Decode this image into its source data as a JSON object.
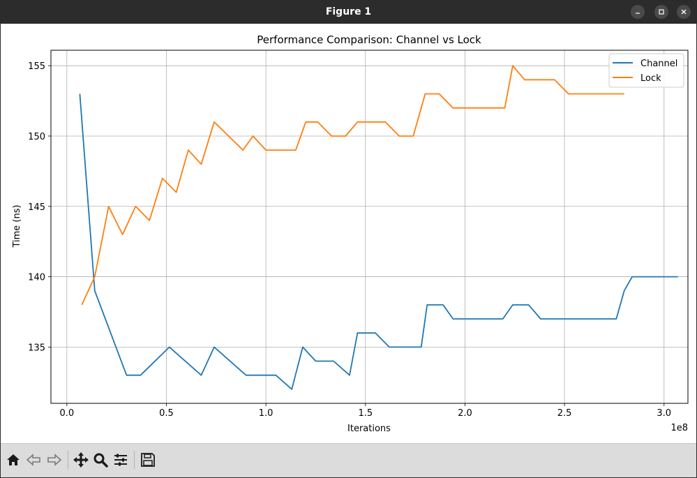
{
  "window": {
    "title": "Figure 1"
  },
  "toolbar": {
    "buttons": [
      {
        "name": "home-icon"
      },
      {
        "name": "back-icon"
      },
      {
        "name": "forward-icon"
      },
      {
        "name": "pan-icon"
      },
      {
        "name": "zoom-icon"
      },
      {
        "name": "configure-subplots-icon"
      },
      {
        "name": "save-icon"
      }
    ]
  },
  "chart_data": {
    "type": "line",
    "title": "Performance Comparison: Channel vs Lock",
    "xlabel": "Iterations",
    "ylabel": "Time (ns)",
    "x_offset_label": "1e8",
    "xlim": [
      -0.08,
      3.12
    ],
    "ylim": [
      131.0,
      156.1
    ],
    "x_ticks": [
      0.0,
      0.5,
      1.0,
      1.5,
      2.0,
      2.5,
      3.0
    ],
    "x_tick_labels": [
      "0.0",
      "0.5",
      "1.0",
      "1.5",
      "2.0",
      "2.5",
      "3.0"
    ],
    "y_ticks": [
      135,
      140,
      145,
      150,
      155
    ],
    "y_tick_labels": [
      "135",
      "140",
      "145",
      "150",
      "155"
    ],
    "grid": true,
    "legend_position": "top-right",
    "series": [
      {
        "name": "Channel",
        "color": "#1f77b4",
        "points": [
          [
            0.065,
            153
          ],
          [
            0.14,
            139
          ],
          [
            0.3,
            133
          ],
          [
            0.37,
            133
          ],
          [
            0.515,
            135
          ],
          [
            0.675,
            133
          ],
          [
            0.74,
            135
          ],
          [
            0.9,
            133
          ],
          [
            1.05,
            133
          ],
          [
            1.13,
            132
          ],
          [
            1.185,
            135
          ],
          [
            1.25,
            134
          ],
          [
            1.34,
            134
          ],
          [
            1.42,
            133
          ],
          [
            1.46,
            136
          ],
          [
            1.55,
            136
          ],
          [
            1.62,
            135
          ],
          [
            1.78,
            135
          ],
          [
            1.81,
            138
          ],
          [
            1.89,
            138
          ],
          [
            1.94,
            137
          ],
          [
            2.19,
            137
          ],
          [
            2.24,
            138
          ],
          [
            2.32,
            138
          ],
          [
            2.38,
            137
          ],
          [
            2.76,
            137
          ],
          [
            2.8,
            139
          ],
          [
            2.84,
            140
          ],
          [
            3.07,
            140
          ]
        ]
      },
      {
        "name": "Lock",
        "color": "#ff7f0e",
        "points": [
          [
            0.075,
            138
          ],
          [
            0.14,
            140
          ],
          [
            0.21,
            145
          ],
          [
            0.28,
            143
          ],
          [
            0.345,
            145
          ],
          [
            0.415,
            144
          ],
          [
            0.48,
            147
          ],
          [
            0.55,
            146
          ],
          [
            0.61,
            149
          ],
          [
            0.675,
            148
          ],
          [
            0.74,
            151
          ],
          [
            0.885,
            149
          ],
          [
            0.935,
            150
          ],
          [
            1.0,
            149
          ],
          [
            1.15,
            149
          ],
          [
            1.2,
            151
          ],
          [
            1.26,
            151
          ],
          [
            1.33,
            150
          ],
          [
            1.4,
            150
          ],
          [
            1.46,
            151
          ],
          [
            1.6,
            151
          ],
          [
            1.67,
            150
          ],
          [
            1.74,
            150
          ],
          [
            1.8,
            153
          ],
          [
            1.87,
            153
          ],
          [
            1.94,
            152
          ],
          [
            2.2,
            152
          ],
          [
            2.24,
            155
          ],
          [
            2.3,
            154
          ],
          [
            2.45,
            154
          ],
          [
            2.52,
            153
          ],
          [
            2.8,
            153
          ]
        ]
      }
    ]
  }
}
